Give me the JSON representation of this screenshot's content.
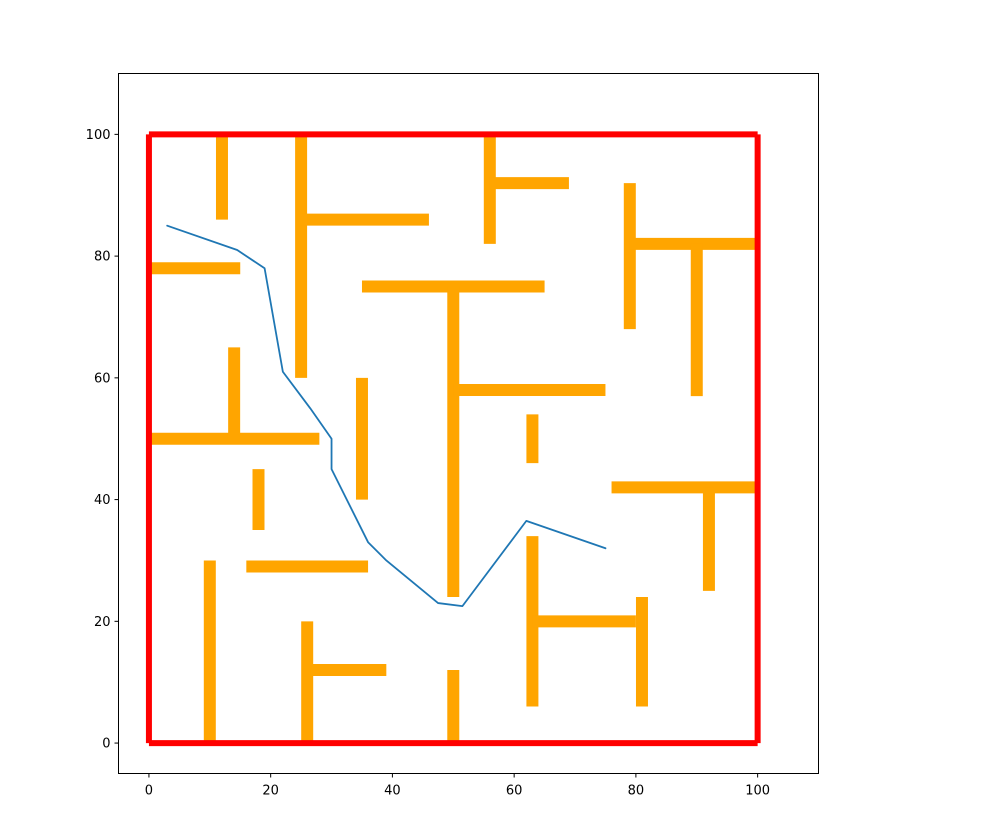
{
  "chart_data": {
    "type": "line",
    "title": "",
    "xlabel": "",
    "ylabel": "",
    "xlim": [
      -5,
      110
    ],
    "ylim": [
      -5,
      110
    ],
    "x_ticks": [
      0,
      20,
      40,
      60,
      80,
      100
    ],
    "y_ticks": [
      0,
      20,
      40,
      60,
      80,
      100
    ],
    "grid": false,
    "legend": "none",
    "boundary": {
      "color": "#ff0000",
      "segments": [
        [
          [
            0,
            100
          ],
          [
            100,
            100
          ]
        ],
        [
          [
            0,
            0
          ],
          [
            100,
            0
          ]
        ],
        [
          [
            0,
            0
          ],
          [
            0,
            100
          ]
        ],
        [
          [
            100,
            0
          ],
          [
            100,
            100
          ]
        ]
      ]
    },
    "obstacles": {
      "color": "#ffa500",
      "segments": [
        [
          [
            12,
            86
          ],
          [
            12,
            100
          ]
        ],
        [
          [
            25,
            60
          ],
          [
            25,
            100
          ]
        ],
        [
          [
            25,
            86
          ],
          [
            46,
            86
          ]
        ],
        [
          [
            56,
            82
          ],
          [
            56,
            100
          ]
        ],
        [
          [
            56,
            92
          ],
          [
            69,
            92
          ]
        ],
        [
          [
            79,
            68
          ],
          [
            79,
            92
          ]
        ],
        [
          [
            79,
            82
          ],
          [
            100,
            82
          ]
        ],
        [
          [
            90,
            57
          ],
          [
            90,
            82
          ]
        ],
        [
          [
            0,
            78
          ],
          [
            15,
            78
          ]
        ],
        [
          [
            35,
            75
          ],
          [
            65,
            75
          ]
        ],
        [
          [
            50,
            24
          ],
          [
            50,
            75
          ]
        ],
        [
          [
            50,
            58
          ],
          [
            75,
            58
          ]
        ],
        [
          [
            14,
            50
          ],
          [
            14,
            65
          ]
        ],
        [
          [
            0,
            50
          ],
          [
            28,
            50
          ]
        ],
        [
          [
            35,
            40
          ],
          [
            35,
            60
          ]
        ],
        [
          [
            63,
            46
          ],
          [
            63,
            54
          ]
        ],
        [
          [
            18,
            35
          ],
          [
            18,
            45
          ]
        ],
        [
          [
            76,
            42
          ],
          [
            100,
            42
          ]
        ],
        [
          [
            92,
            25
          ],
          [
            92,
            42
          ]
        ],
        [
          [
            16,
            29
          ],
          [
            36,
            29
          ]
        ],
        [
          [
            10,
            0
          ],
          [
            10,
            30
          ]
        ],
        [
          [
            63,
            6
          ],
          [
            63,
            34
          ]
        ],
        [
          [
            63,
            20
          ],
          [
            80,
            20
          ]
        ],
        [
          [
            81,
            6
          ],
          [
            81,
            24
          ]
        ],
        [
          [
            26,
            0
          ],
          [
            26,
            20
          ]
        ],
        [
          [
            26,
            12
          ],
          [
            39,
            12
          ]
        ],
        [
          [
            50,
            0
          ],
          [
            50,
            12
          ]
        ]
      ]
    },
    "series": [
      {
        "color": "#1f77b4",
        "x": [
          3,
          14.5,
          19,
          22,
          26.5,
          30,
          30,
          36,
          39,
          47.5,
          51.5,
          62,
          75
        ],
        "y": [
          85,
          81,
          78,
          61,
          55,
          50,
          45,
          33,
          30,
          23,
          22.5,
          36.5,
          32
        ]
      }
    ]
  }
}
